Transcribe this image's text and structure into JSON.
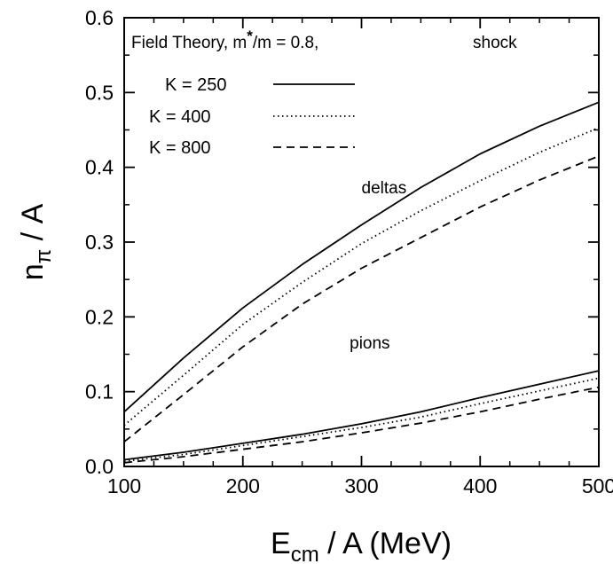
{
  "chart_data": {
    "type": "line",
    "title": "Field Theory,  m*/m = 0.8,    shock",
    "title_parts": {
      "prefix": "Field Theory,  m",
      "star": "*",
      "suffix": "/m = 0.8,",
      "mode": "shock"
    },
    "xlabel": {
      "main": "E",
      "sub": "cm",
      "rest": " / A (MeV)"
    },
    "ylabel": {
      "main": "n",
      "sub": "π",
      "rest": " / A"
    },
    "xlim": [
      100,
      500
    ],
    "ylim": [
      0.0,
      0.6
    ],
    "xticks": [
      100,
      200,
      300,
      400,
      500
    ],
    "xtick_labels": [
      "100",
      "200",
      "300",
      "400",
      "500"
    ],
    "yticks": [
      0.0,
      0.1,
      0.2,
      0.3,
      0.4,
      0.5,
      0.6
    ],
    "ytick_labels": [
      "0.0",
      "0.1",
      "0.2",
      "0.3",
      "0.4",
      "0.5",
      "0.6"
    ],
    "grid": false,
    "legend_position": "top-left",
    "legend": [
      {
        "label": "K = 250",
        "style": "solid"
      },
      {
        "label": "K = 400",
        "style": "dotted"
      },
      {
        "label": "K = 800",
        "style": "dashed"
      }
    ],
    "annotations": [
      {
        "text": "deltas",
        "x": 300,
        "y": 0.365
      },
      {
        "text": "pions",
        "x": 290,
        "y": 0.158
      }
    ],
    "series": [
      {
        "group": "deltas",
        "name": "K = 250",
        "style": "solid",
        "x": [
          100,
          150,
          200,
          250,
          300,
          350,
          400,
          450,
          500
        ],
        "y": [
          0.073,
          0.145,
          0.212,
          0.27,
          0.323,
          0.373,
          0.418,
          0.455,
          0.487
        ]
      },
      {
        "group": "deltas",
        "name": "K = 400",
        "style": "dotted",
        "x": [
          100,
          150,
          200,
          250,
          300,
          350,
          400,
          450,
          500
        ],
        "y": [
          0.055,
          0.122,
          0.19,
          0.246,
          0.298,
          0.342,
          0.382,
          0.42,
          0.453
        ]
      },
      {
        "group": "deltas",
        "name": "K = 800",
        "style": "dashed",
        "x": [
          100,
          150,
          200,
          250,
          300,
          350,
          400,
          450,
          500
        ],
        "y": [
          0.033,
          0.096,
          0.16,
          0.217,
          0.265,
          0.306,
          0.347,
          0.383,
          0.415
        ]
      },
      {
        "group": "pions",
        "name": "K = 250",
        "style": "solid",
        "x": [
          100,
          150,
          200,
          250,
          300,
          350,
          400,
          450,
          500
        ],
        "y": [
          0.009,
          0.019,
          0.031,
          0.043,
          0.057,
          0.073,
          0.092,
          0.11,
          0.128
        ]
      },
      {
        "group": "pions",
        "name": "K = 400",
        "style": "dotted",
        "x": [
          100,
          150,
          200,
          250,
          300,
          350,
          400,
          450,
          500
        ],
        "y": [
          0.007,
          0.016,
          0.028,
          0.04,
          0.052,
          0.066,
          0.084,
          0.101,
          0.118
        ]
      },
      {
        "group": "pions",
        "name": "K = 800",
        "style": "dashed",
        "x": [
          100,
          150,
          200,
          250,
          300,
          350,
          400,
          450,
          500
        ],
        "y": [
          0.005,
          0.013,
          0.023,
          0.033,
          0.045,
          0.058,
          0.073,
          0.09,
          0.106
        ]
      }
    ]
  }
}
